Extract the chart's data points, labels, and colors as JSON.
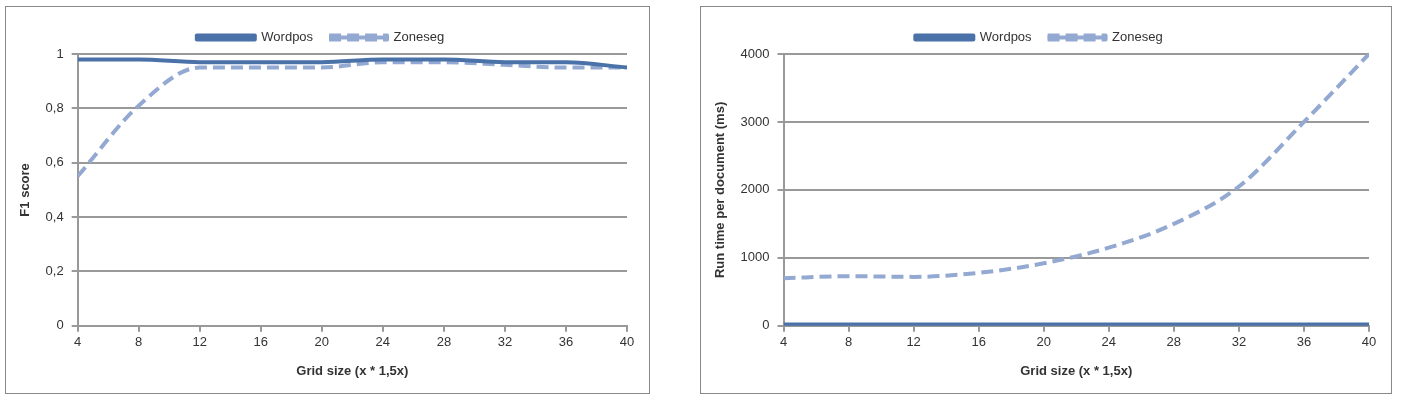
{
  "chart_data": [
    {
      "type": "line",
      "xlabel": "Grid size (x * 1,5x)",
      "ylabel": "F1 score",
      "x": [
        4,
        8,
        12,
        16,
        20,
        24,
        28,
        32,
        36,
        40
      ],
      "xlim": [
        4,
        40
      ],
      "xticks": [
        4,
        8,
        12,
        16,
        20,
        24,
        28,
        32,
        36,
        40
      ],
      "ylim": [
        0,
        1
      ],
      "yticks": [
        0,
        {
          "value": 0.2,
          "label": "0,2"
        },
        {
          "value": 0.4,
          "label": "0,4"
        },
        {
          "value": 0.6,
          "label": "0,6"
        },
        {
          "value": 0.8,
          "label": "0,8"
        },
        1
      ],
      "grid": "y",
      "legend": "top",
      "marker": "none",
      "series": [
        {
          "name": "Wordpos",
          "color": "#4a72a8",
          "line_style": "solid",
          "values": [
            0.98,
            0.98,
            0.97,
            0.97,
            0.97,
            0.98,
            0.98,
            0.97,
            0.97,
            0.95
          ]
        },
        {
          "name": "Zoneseg",
          "color": "#93a9d2",
          "line_style": "dashed",
          "values": [
            0.55,
            0.81,
            0.95,
            0.95,
            0.95,
            0.97,
            0.97,
            0.96,
            0.95,
            0.95
          ]
        }
      ]
    },
    {
      "type": "line",
      "xlabel": "Grid size (x * 1,5x)",
      "ylabel": "Run time per document (ms)",
      "x": [
        4,
        8,
        12,
        16,
        20,
        24,
        28,
        32,
        36,
        40
      ],
      "xlim": [
        4,
        40
      ],
      "xticks": [
        4,
        8,
        12,
        16,
        20,
        24,
        28,
        32,
        36,
        40
      ],
      "ylim": [
        0,
        4000
      ],
      "yticks": [
        0,
        1000,
        2000,
        3000,
        4000
      ],
      "grid": "y",
      "legend": "top",
      "marker": "none",
      "series": [
        {
          "name": "Wordpos",
          "color": "#4a72a8",
          "line_style": "solid",
          "values": [
            20,
            20,
            20,
            20,
            20,
            20,
            20,
            20,
            20,
            20
          ]
        },
        {
          "name": "Zoneseg",
          "color": "#93a9d2",
          "line_style": "dashed",
          "values": [
            700,
            730,
            720,
            780,
            920,
            1150,
            1500,
            2050,
            3000,
            4000
          ]
        }
      ]
    }
  ]
}
